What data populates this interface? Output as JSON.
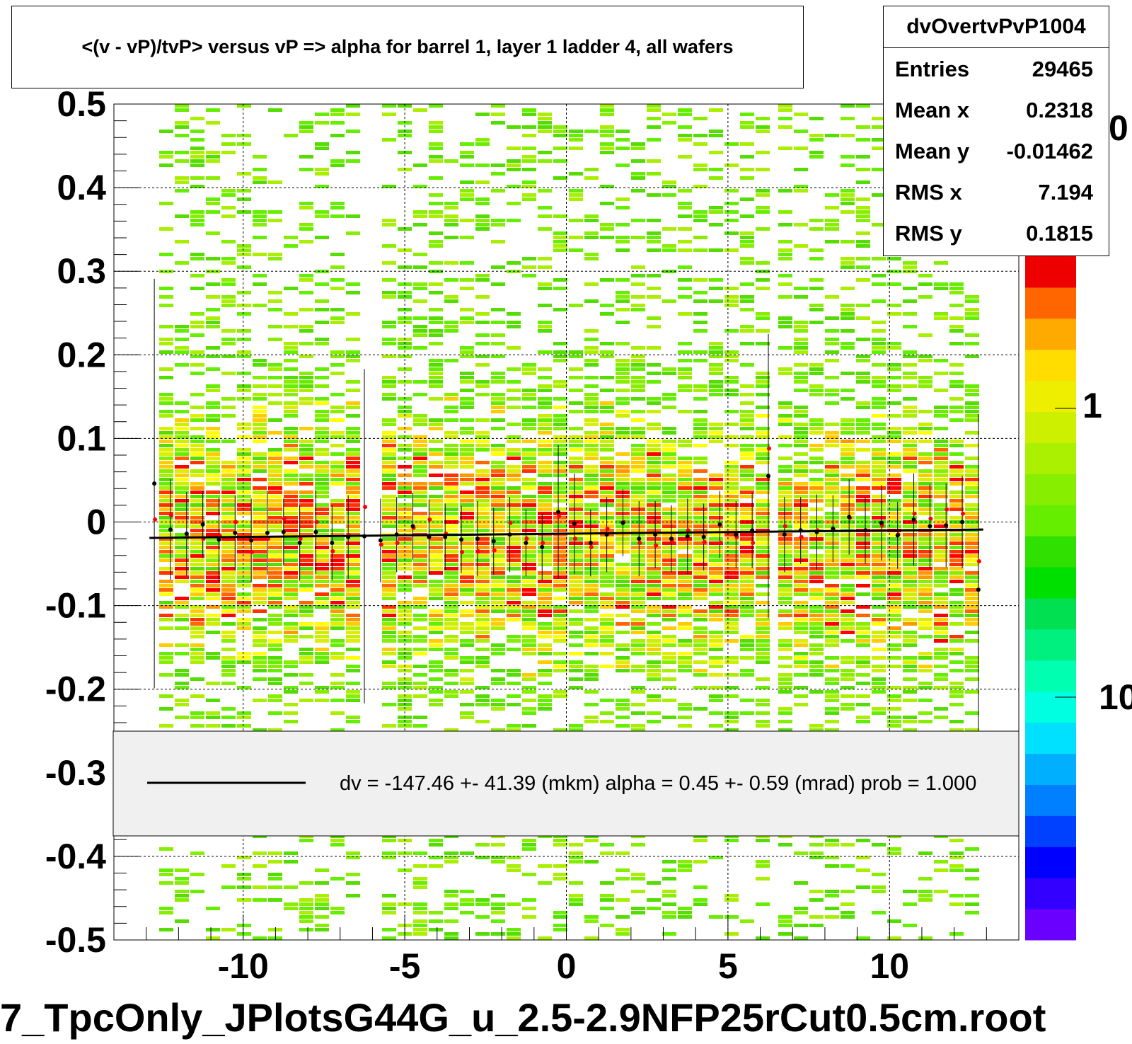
{
  "title": "<(v - vP)/tvP> versus   vP => alpha for barrel 1, layer 1 ladder 4, all wafers",
  "footer": "7_TpcOnly_JPlotsG44G_u_2.5-2.9NFP25rCut0.5cm.root",
  "stats": {
    "name": "dvOvertvPvP1004",
    "rows": [
      {
        "label": "Entries",
        "value": "29465"
      },
      {
        "label": "Mean x",
        "value": "0.2318"
      },
      {
        "label": "Mean y",
        "value": "-0.01462"
      },
      {
        "label": "RMS x",
        "value": "7.194"
      },
      {
        "label": "RMS y",
        "value": "0.1815"
      }
    ]
  },
  "legend": {
    "text": "dv = -147.46 +- 41.39 (mkm) alpha =    0.45 +-  0.59 (mrad) prob = 1.000"
  },
  "colors": {
    "fit_line": "#000000",
    "points_black": "#000000",
    "points_red": "#ff0000",
    "legend_bg": "#f0f0f0"
  },
  "palette": [
    "#6a00ff",
    "#3300ff",
    "#0000ff",
    "#0040ff",
    "#0080ff",
    "#00b0ff",
    "#00e0ff",
    "#00ffe0",
    "#00ffb0",
    "#00f080",
    "#00e050",
    "#00e000",
    "#30e000",
    "#66ee00",
    "#88ee00",
    "#aaf000",
    "#ccf000",
    "#eeee00",
    "#ffdd00",
    "#ffaa00",
    "#ff6600",
    "#ee0000"
  ],
  "chart_data": {
    "type": "heatmap",
    "xlim": [
      -14,
      14
    ],
    "ylim": [
      -0.5,
      0.5
    ],
    "x_ticks": [
      -10,
      -5,
      0,
      5,
      10
    ],
    "y_ticks": [
      -0.5,
      -0.4,
      -0.3,
      -0.2,
      -0.1,
      0,
      0.1,
      0.2,
      0.3,
      0.4,
      0.5
    ],
    "x_tick_labels": [
      "-10",
      "-5",
      "0",
      "5",
      "10"
    ],
    "y_tick_labels": [
      "-0.5",
      "-0.4",
      "-0.3",
      "-0.2",
      "-0.1",
      "0",
      "0.1",
      "0.2",
      "0.3",
      "0.4",
      "0.5"
    ],
    "grid": true,
    "colorbar_labels": [
      "0",
      "1",
      "10"
    ],
    "fit_line": {
      "x": [
        -12.9,
        12.9
      ],
      "y": [
        -0.019,
        -0.009
      ]
    },
    "profile_black": {
      "x": [
        -12.75,
        -12.25,
        -11.75,
        -11.25,
        -10.75,
        -10.25,
        -9.75,
        -9.25,
        -8.75,
        -8.25,
        -7.75,
        -7.25,
        -6.75,
        -6.25,
        -5.75,
        -5.25,
        -4.75,
        -4.25,
        -3.75,
        -3.25,
        -2.75,
        -2.25,
        -1.75,
        -1.25,
        -0.75,
        -0.25,
        0.25,
        0.75,
        1.25,
        1.75,
        2.25,
        2.75,
        3.25,
        3.75,
        4.25,
        4.75,
        5.25,
        5.75,
        6.25,
        6.75,
        7.25,
        7.75,
        8.25,
        8.75,
        9.25,
        9.75,
        10.25,
        10.75,
        11.25,
        11.75,
        12.25,
        12.75
      ],
      "y": [
        0.046,
        -0.009,
        -0.014,
        -0.003,
        -0.021,
        -0.013,
        -0.022,
        -0.013,
        -0.012,
        -0.025,
        -0.012,
        -0.025,
        -0.018,
        -0.017,
        -0.022,
        -0.015,
        -0.005,
        -0.018,
        -0.018,
        -0.021,
        -0.02,
        -0.023,
        -0.015,
        -0.025,
        -0.03,
        0.012,
        -0.002,
        -0.025,
        -0.015,
        -0.001,
        -0.02,
        -0.015,
        -0.02,
        -0.017,
        -0.018,
        -0.003,
        -0.015,
        -0.01,
        0.055,
        -0.015,
        -0.01,
        -0.012,
        -0.008,
        0.006,
        -0.01,
        -0.001,
        -0.016,
        0.003,
        -0.005,
        -0.004,
        0.0,
        -0.081
      ],
      "err": [
        0.245,
        0.06,
        0.05,
        0.04,
        0.05,
        0.045,
        0.05,
        0.05,
        0.04,
        0.045,
        0.05,
        0.045,
        0.05,
        0.2,
        0.05,
        0.045,
        0.04,
        0.045,
        0.04,
        0.04,
        0.045,
        0.04,
        0.045,
        0.04,
        0.04,
        0.08,
        0.06,
        0.04,
        0.045,
        0.04,
        0.045,
        0.04,
        0.04,
        0.045,
        0.04,
        0.04,
        0.04,
        0.045,
        0.17,
        0.045,
        0.04,
        0.045,
        0.04,
        0.045,
        0.04,
        0.045,
        0.04,
        0.055,
        0.05,
        0.05,
        0.055,
        0.21
      ]
    },
    "profile_red": {
      "x": [
        -12.75,
        -12.25,
        -11.75,
        -11.25,
        -10.75,
        -10.25,
        -9.75,
        -9.25,
        -8.75,
        -8.25,
        -7.75,
        -7.25,
        -6.75,
        -6.25,
        -5.75,
        -5.25,
        -4.75,
        -4.25,
        -3.75,
        -3.25,
        -2.75,
        -2.25,
        -1.75,
        -1.25,
        -0.75,
        -0.25,
        0.25,
        0.75,
        1.25,
        1.75,
        2.25,
        2.75,
        3.25,
        3.75,
        4.25,
        4.75,
        5.25,
        5.75,
        6.25,
        6.75,
        7.25,
        7.75,
        8.25,
        8.75,
        9.25,
        9.75,
        10.25,
        10.75,
        11.25,
        11.75,
        12.25,
        12.75
      ],
      "y": [
        0.003,
        0.008,
        -0.018,
        -0.02,
        -0.016,
        0.0,
        -0.036,
        -0.02,
        0.004,
        -0.02,
        0.0,
        -0.035,
        -0.016,
        0.018,
        -0.027,
        -0.025,
        -0.007,
        0.003,
        -0.014,
        -0.036,
        -0.035,
        -0.034,
        -0.001,
        -0.02,
        -0.025,
        0.007,
        -0.02,
        -0.03,
        -0.008,
        0.0,
        -0.025,
        -0.028,
        -0.022,
        -0.01,
        -0.024,
        -0.025,
        -0.018,
        -0.025,
        0.088,
        -0.005,
        -0.018,
        -0.01,
        -0.01,
        0.005,
        -0.01,
        -0.004,
        -0.015,
        0.01,
        0.004,
        0.015,
        0.01,
        -0.047
      ]
    }
  }
}
